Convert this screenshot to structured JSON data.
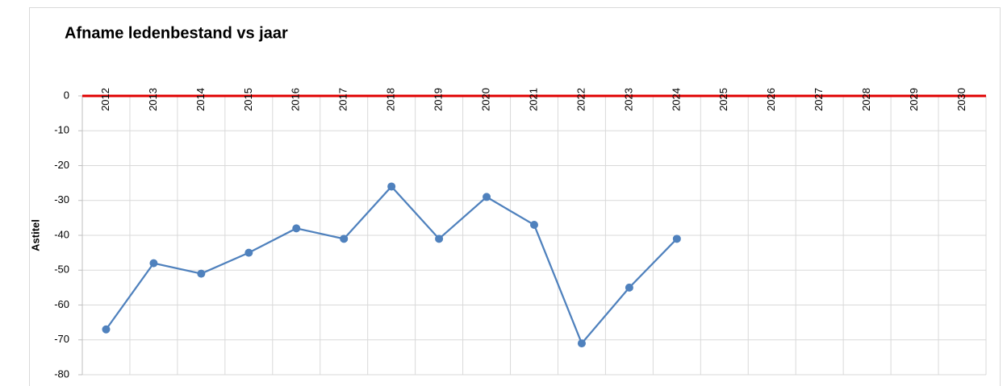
{
  "chart_data": {
    "type": "line",
    "title": "Afname ledenbestand vs jaar",
    "y_label": "Astitel",
    "categories": [
      "2012",
      "2013",
      "2014",
      "2015",
      "2016",
      "2017",
      "2018",
      "2019",
      "2020",
      "2021",
      "2022",
      "2023",
      "2024",
      "2025",
      "2026",
      "2027",
      "2028",
      "2029",
      "2030"
    ],
    "series": [
      {
        "color": "#4f81bd",
        "values": [
          -67,
          -48,
          -51,
          -45,
          -38,
          -41,
          -26,
          -41,
          -29,
          -37,
          -71,
          -55,
          -41,
          null,
          null,
          null,
          null,
          null,
          null
        ]
      }
    ],
    "ylim": [
      -80,
      0
    ],
    "yticks": [
      0,
      -10,
      -20,
      -30,
      -40,
      -50,
      -60,
      -70,
      -80
    ],
    "grid": true,
    "x_axis_position": "top",
    "x_axis_color": "#e00000"
  }
}
